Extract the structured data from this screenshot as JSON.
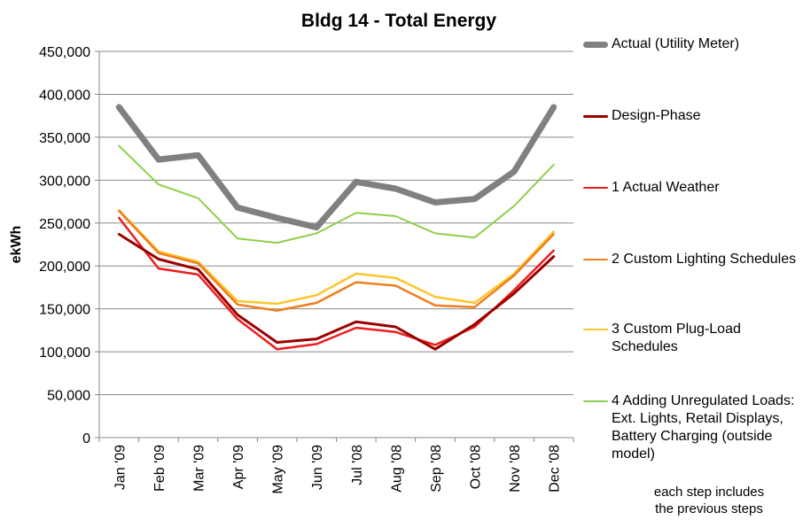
{
  "chart_data": {
    "type": "line",
    "title": "Bldg 14 - Total Energy",
    "xlabel": "",
    "ylabel": "ekWh",
    "ylim": [
      0,
      450000
    ],
    "ytick_labels": [
      "0",
      "50,000",
      "100,000",
      "150,000",
      "200,000",
      "250,000",
      "300,000",
      "350,000",
      "400,000",
      "450,000"
    ],
    "categories": [
      "Jan '09",
      "Feb '09",
      "Mar '09",
      "Apr '09",
      "May '09",
      "Jun '09",
      "Jul '08",
      "Aug '08",
      "Sep '08",
      "Oct '08",
      "Nov '08",
      "Dec '08"
    ],
    "grid": "horizontal",
    "legend_position": "right",
    "series": [
      {
        "name": "Actual (Utility Meter)",
        "color": "#808080",
        "values": [
          385000,
          324000,
          329000,
          268000,
          256000,
          245000,
          298000,
          290000,
          274000,
          278000,
          310000,
          385000
        ]
      },
      {
        "name": "Design-Phase",
        "color": "#9b0000",
        "values": [
          237000,
          208000,
          196000,
          143000,
          111000,
          115000,
          135000,
          129000,
          103000,
          132000,
          168000,
          211000
        ]
      },
      {
        "name": "1 Actual Weather",
        "color": "#ee1c1c",
        "values": [
          256000,
          197000,
          190000,
          138000,
          103000,
          109000,
          128000,
          123000,
          108000,
          129000,
          172000,
          218000
        ]
      },
      {
        "name": "2 Custom Lighting Schedules",
        "color": "#f07d1e",
        "values": [
          264000,
          215000,
          203000,
          155000,
          148000,
          157000,
          181000,
          177000,
          154000,
          152000,
          189000,
          237000
        ]
      },
      {
        "name": "3 Custom Plug-Load Schedules",
        "color": "#fcc52c",
        "values": [
          265000,
          217000,
          205000,
          159000,
          156000,
          166000,
          191000,
          186000,
          164000,
          157000,
          191000,
          240000
        ]
      },
      {
        "name": "4 Adding Unregulated Loads: Ext. Lights, Retail Displays, Battery Charging (outside model)",
        "color": "#8dd04a",
        "values": [
          340000,
          295000,
          279000,
          232000,
          227000,
          238000,
          262000,
          258000,
          238000,
          233000,
          270000,
          318000
        ]
      }
    ],
    "annotation": [
      "each step includes",
      "the previous steps"
    ]
  }
}
